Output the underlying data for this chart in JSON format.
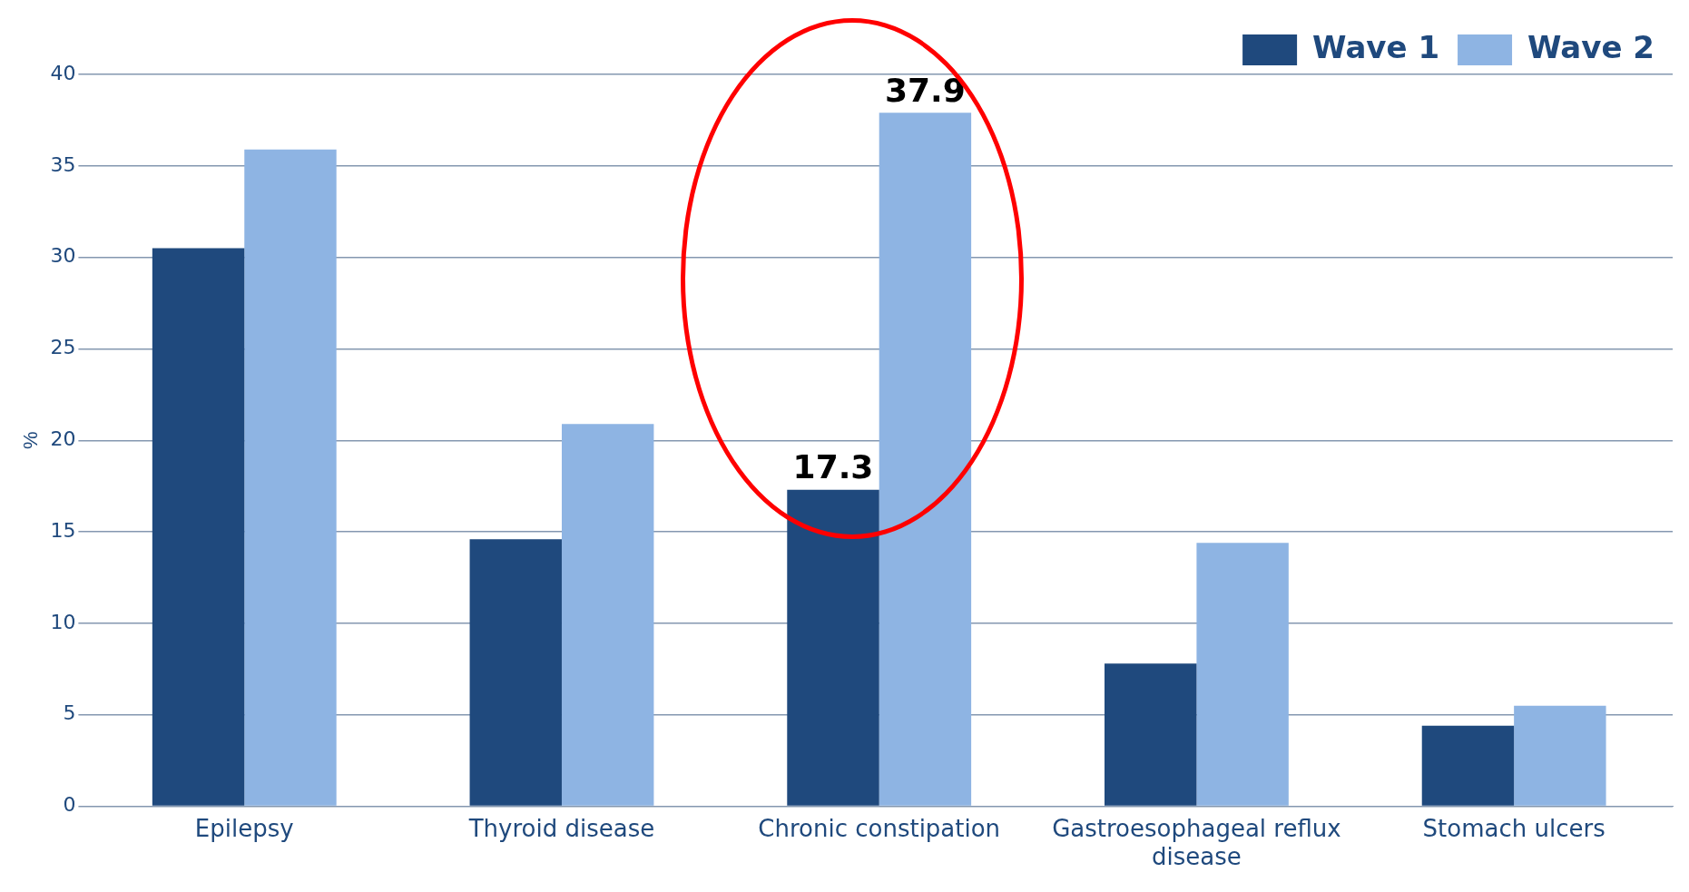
{
  "chart_data": {
    "type": "bar",
    "ylabel": "%",
    "categories": [
      "Epilepsy",
      "Thyroid disease",
      "Chronic constipation",
      "Gastroesophageal reflux disease",
      "Stomach ulcers"
    ],
    "series": [
      {
        "name": "Wave 1",
        "color": "#1f497d",
        "values": [
          30.5,
          14.6,
          17.3,
          7.8,
          4.4
        ],
        "value_labels": [
          null,
          null,
          "17.3",
          null,
          null
        ]
      },
      {
        "name": "Wave 2",
        "color": "#8eb4e3",
        "values": [
          35.9,
          20.9,
          37.9,
          14.4,
          5.5
        ],
        "value_labels": [
          null,
          null,
          "37.9",
          null,
          null
        ]
      }
    ],
    "ylim": [
      0,
      40
    ],
    "yticks": [
      0,
      5,
      10,
      15,
      20,
      25,
      30,
      35,
      40
    ],
    "grid": "y",
    "legend": "top right"
  }
}
